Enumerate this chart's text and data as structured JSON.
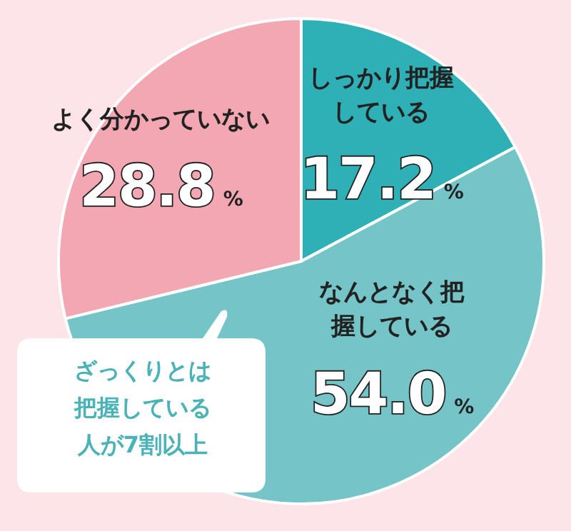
{
  "chart_data": {
    "type": "pie",
    "categories": [
      "しっかり把握している",
      "なんとなく把握している",
      "よく分かっていない"
    ],
    "values": [
      17.2,
      54.0,
      28.8
    ],
    "colors": [
      "#2fb0b7",
      "#74c4c8",
      "#f3a7b3"
    ],
    "value_labels": [
      "17.2%",
      "54.0%",
      "28.8%"
    ],
    "annotations": [
      "ざっくりとは把握している人が7割以上"
    ]
  }
}
